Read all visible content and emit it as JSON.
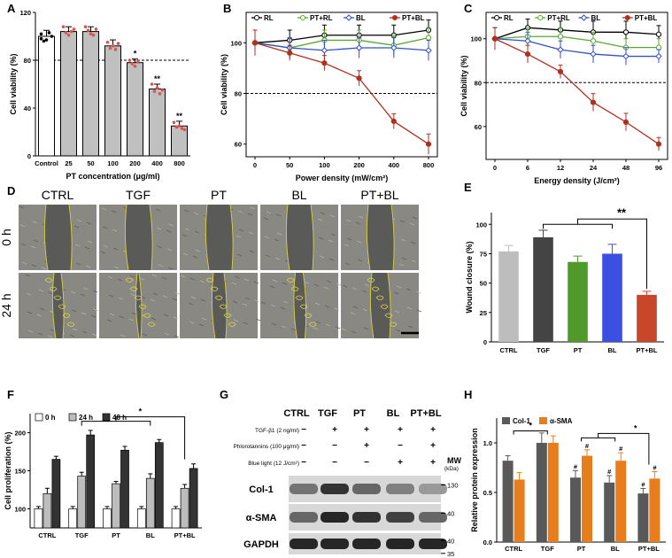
{
  "panel_letters": [
    "A",
    "B",
    "C",
    "D",
    "E",
    "F",
    "G",
    "H"
  ],
  "chart_data": [
    {
      "panel": "A",
      "type": "bar",
      "categories": [
        "Control",
        "25",
        "50",
        "100",
        "200",
        "400",
        "800"
      ],
      "values": [
        100,
        104,
        104,
        92,
        78,
        56,
        25
      ],
      "errors": [
        5,
        4,
        4,
        5,
        3,
        4,
        4
      ],
      "points": [
        [
          102,
          96,
          97,
          103,
          100,
          98
        ],
        [
          108,
          103,
          101,
          104,
          106
        ],
        [
          108,
          105,
          102,
          101,
          106
        ],
        [
          95,
          90,
          92,
          89,
          94
        ],
        [
          80,
          77,
          75,
          79
        ],
        [
          60,
          54,
          57,
          52,
          55
        ],
        [
          28,
          24,
          25,
          23,
          22
        ]
      ],
      "significance": [
        "",
        "",
        "",
        "",
        "*",
        "**",
        "**"
      ],
      "xlabel": "PT concentration (μg/ml)",
      "ylabel": "Cell viability (%)",
      "ylim": [
        0,
        120
      ],
      "yticks": [
        "0",
        "40",
        "80",
        "120"
      ],
      "reference_line": 80,
      "colors": {
        "control": "#ffffff",
        "treated": "#c0c0c0",
        "points": "#d9534f"
      }
    },
    {
      "panel": "B",
      "type": "line",
      "categories": [
        "0",
        "50",
        "100",
        "200",
        "400",
        "800"
      ],
      "series": [
        {
          "name": "RL",
          "color": "#000000",
          "marker": "open-circle",
          "values": [
            100,
            101,
            103,
            103,
            103,
            105
          ],
          "errors": [
            5,
            4,
            4,
            4,
            4,
            4
          ]
        },
        {
          "name": "PT+RL",
          "color": "#5aa832",
          "marker": "open-circle",
          "values": [
            100,
            98,
            101,
            101,
            99,
            102
          ],
          "errors": [
            5,
            4,
            4,
            4,
            4,
            4
          ]
        },
        {
          "name": "BL",
          "color": "#3050c8",
          "marker": "open-diamond",
          "values": [
            100,
            98,
            97,
            98,
            98,
            97
          ],
          "errors": [
            5,
            4,
            4,
            4,
            4,
            4
          ]
        },
        {
          "name": "PT+BL",
          "color": "#b03020",
          "marker": "filled-circle",
          "values": [
            100,
            96,
            92,
            86,
            69,
            60
          ],
          "errors": [
            5,
            3,
            3,
            3,
            3,
            4
          ]
        }
      ],
      "xlabel": "Power density (mW/cm²)",
      "ylabel": "Cell viability (%)",
      "ylim": [
        55,
        112
      ],
      "yticks": [
        "60",
        "80",
        "100"
      ],
      "reference_line": 80
    },
    {
      "panel": "C",
      "type": "line",
      "categories": [
        "0",
        "6",
        "12",
        "24",
        "48",
        "96"
      ],
      "series": [
        {
          "name": "RL",
          "color": "#000000",
          "marker": "open-circle",
          "values": [
            100,
            105,
            104,
            103,
            103,
            102
          ],
          "errors": [
            5,
            4,
            4,
            5,
            5,
            4
          ]
        },
        {
          "name": "PT+RL",
          "color": "#5aa832",
          "marker": "open-circle",
          "values": [
            100,
            101,
            101,
            99,
            96,
            96
          ],
          "errors": [
            5,
            4,
            4,
            4,
            4,
            4
          ]
        },
        {
          "name": "BL",
          "color": "#3050c8",
          "marker": "open-diamond",
          "values": [
            100,
            99,
            95,
            93,
            92,
            92
          ],
          "errors": [
            5,
            4,
            4,
            4,
            4,
            3
          ]
        },
        {
          "name": "PT+BL",
          "color": "#b03020",
          "marker": "filled-circle",
          "values": [
            100,
            93,
            85,
            71,
            62,
            52
          ],
          "errors": [
            5,
            4,
            3,
            4,
            4,
            3
          ]
        }
      ],
      "xlabel": "Energy density (J/cm²)",
      "ylabel": "Cell viability (%)",
      "ylim": [
        45,
        112
      ],
      "yticks": [
        "60",
        "80",
        "100"
      ],
      "reference_line": 80
    },
    {
      "panel": "E",
      "type": "bar",
      "categories": [
        "CTRL",
        "TGF",
        "PT",
        "BL",
        "PT+BL"
      ],
      "values": [
        77,
        89,
        68,
        75,
        40
      ],
      "errors": [
        5,
        6,
        5,
        8,
        3
      ],
      "colors": [
        "#bdbdbd",
        "#444444",
        "#4f9a2a",
        "#3b4fe0",
        "#c8472a"
      ],
      "significance": "**",
      "ylabel": "Wound closure (%)",
      "ylim": [
        0,
        110
      ],
      "yticks": [
        "0",
        "25",
        "50",
        "75",
        "100"
      ]
    },
    {
      "panel": "F",
      "type": "bar",
      "categories": [
        "CTRL",
        "TGF",
        "PT",
        "BL",
        "PT+BL"
      ],
      "series": [
        {
          "name": "0 h",
          "color": "#ffffff",
          "values": [
            100,
            100,
            100,
            100,
            100
          ],
          "errors": [
            3,
            3,
            3,
            3,
            3
          ]
        },
        {
          "name": "24 h",
          "color": "#bdbdbd",
          "values": [
            120,
            143,
            133,
            140,
            127
          ],
          "errors": [
            7,
            5,
            3,
            6,
            5
          ]
        },
        {
          "name": "48 h",
          "color": "#333333",
          "values": [
            165,
            197,
            177,
            187,
            153
          ],
          "errors": [
            4,
            6,
            5,
            4,
            6
          ]
        }
      ],
      "significance": "*",
      "ylabel": "Cell proliferation (%)",
      "ylim": [
        75,
        225
      ],
      "yticks": [
        "100",
        "150",
        "200"
      ]
    },
    {
      "panel": "H",
      "type": "bar",
      "categories": [
        "CTRL",
        "TGF",
        "PT",
        "BL",
        "PT+BL"
      ],
      "series": [
        {
          "name": "Col-1",
          "color": "#595959",
          "values": [
            0.82,
            1.0,
            0.65,
            0.6,
            0.49
          ],
          "errors": [
            0.05,
            0.1,
            0.07,
            0.07,
            0.05
          ]
        },
        {
          "name": "α-SMA",
          "color": "#e87d1e",
          "values": [
            0.63,
            1.0,
            0.87,
            0.82,
            0.64
          ],
          "errors": [
            0.07,
            0.07,
            0.06,
            0.08,
            0.07
          ]
        }
      ],
      "hash_marks": [
        false,
        false,
        true,
        true,
        true
      ],
      "significance": [
        "*",
        "*"
      ],
      "ylabel": "Relative protein expression",
      "ylim": [
        0,
        1.25
      ],
      "yticks": [
        "0.0",
        "0.5",
        "1.0"
      ]
    }
  ],
  "micrographs": {
    "columns": [
      "CTRL",
      "TGF",
      "PT",
      "BL",
      "PT+BL"
    ],
    "rows": [
      "0 h",
      "24 h"
    ]
  },
  "blot": {
    "lanes": [
      "CTRL",
      "TGF",
      "PT",
      "BL",
      "PT+BL"
    ],
    "conditions": [
      {
        "label": "TGF-β1 (2 ng/ml)",
        "marks": [
          "−",
          "+",
          "+",
          "+",
          "+"
        ]
      },
      {
        "label": "Phlorotannins (100 μg/ml)",
        "marks": [
          "−",
          "−",
          "+",
          "−",
          "+"
        ]
      },
      {
        "label": "Blue light (12 J/cm²)",
        "marks": [
          "−",
          "−",
          "−",
          "+",
          "+"
        ]
      }
    ],
    "mw_label": "MW\n(kDa)",
    "bands": [
      {
        "name": "Col-1",
        "mw": [
          "130"
        ],
        "intensity": [
          0.55,
          0.8,
          0.6,
          0.5,
          0.4
        ]
      },
      {
        "name": "α-SMA",
        "mw": [
          "40"
        ],
        "intensity": [
          0.6,
          0.85,
          0.8,
          0.75,
          0.6
        ]
      },
      {
        "name": "GAPDH",
        "mw": [
          "40",
          "35"
        ],
        "intensity": [
          0.85,
          0.85,
          0.85,
          0.85,
          0.85
        ]
      }
    ]
  }
}
